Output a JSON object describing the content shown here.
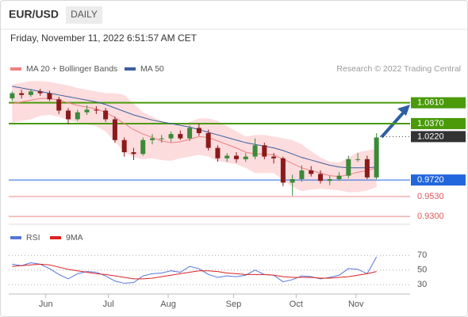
{
  "chart_data": {
    "type": "candlestick",
    "title": "EUR/USD",
    "timeframe": "DAILY",
    "subtitle": "Friday, November 11, 2022 6:51:57 AM CET",
    "source": "Research © 2022 Trading Central",
    "up_color": "#3a8a3a",
    "down_color": "#8b1a1a",
    "open": [
      1.066,
      1.072,
      1.07,
      1.074,
      1.072,
      1.065,
      1.052,
      1.042,
      1.05,
      1.053,
      1.052,
      1.042,
      1.018,
      1.004,
      1.002,
      1.018,
      1.02,
      1.02,
      1.025,
      1.02,
      1.032,
      1.026,
      1.009,
      0.997,
      1.0,
      0.996,
      0.999,
      1.012,
      0.999,
      0.997,
      0.969,
      0.973,
      0.983,
      0.979,
      0.971,
      0.973,
      0.977,
      0.996,
      0.996,
      0.975
    ],
    "high": [
      1.074,
      1.076,
      1.077,
      1.077,
      1.075,
      1.068,
      1.055,
      1.053,
      1.058,
      1.057,
      1.055,
      1.045,
      1.021,
      1.009,
      1.021,
      1.025,
      1.024,
      1.028,
      1.029,
      1.035,
      1.037,
      1.03,
      1.012,
      1.003,
      1.004,
      1.003,
      1.02,
      1.015,
      1.003,
      0.999,
      0.978,
      0.989,
      0.988,
      0.983,
      0.977,
      0.981,
      1.0,
      1.003,
      1.0,
      1.026
    ],
    "low": [
      1.063,
      1.066,
      1.068,
      1.069,
      1.063,
      1.048,
      1.036,
      1.04,
      1.047,
      1.048,
      1.039,
      1.015,
      0.999,
      0.995,
      1.0,
      1.013,
      1.015,
      1.016,
      1.018,
      1.017,
      1.023,
      1.006,
      0.993,
      0.993,
      0.992,
      0.993,
      0.996,
      0.996,
      0.991,
      0.965,
      0.954,
      0.97,
      0.976,
      0.968,
      0.966,
      0.971,
      0.974,
      0.993,
      0.973,
      0.973
    ],
    "close": [
      1.072,
      1.07,
      1.074,
      1.072,
      1.065,
      1.052,
      1.042,
      1.05,
      1.053,
      1.052,
      1.042,
      1.018,
      1.004,
      1.002,
      1.018,
      1.02,
      1.02,
      1.025,
      1.02,
      1.032,
      1.026,
      1.009,
      0.997,
      1.0,
      0.996,
      0.999,
      1.012,
      0.999,
      0.997,
      0.969,
      0.973,
      0.983,
      0.979,
      0.971,
      0.973,
      0.977,
      0.996,
      0.996,
      0.975,
      1.021
    ],
    "series": [
      {
        "name": "MA 20 + Bollinger Bands",
        "color": "#f08080",
        "values": [
          1.06,
          1.062,
          1.064,
          1.066,
          1.066,
          1.064,
          1.061,
          1.058,
          1.056,
          1.054,
          1.05,
          1.044,
          1.037,
          1.03,
          1.025,
          1.021,
          1.017,
          1.015,
          1.016,
          1.019,
          1.022,
          1.021,
          1.017,
          1.013,
          1.009,
          1.004,
          1.002,
          1.002,
          1.001,
          0.996,
          0.991,
          0.986,
          0.983,
          0.98,
          0.977,
          0.976,
          0.978,
          0.981,
          0.983,
          0.986
        ]
      },
      {
        "name": "MA 50",
        "color": "#3a5f9e",
        "values": [
          1.08,
          1.078,
          1.076,
          1.074,
          1.072,
          1.07,
          1.068,
          1.066,
          1.064,
          1.062,
          1.059,
          1.055,
          1.051,
          1.047,
          1.044,
          1.041,
          1.039,
          1.037,
          1.035,
          1.033,
          1.03,
          1.027,
          1.024,
          1.021,
          1.018,
          1.015,
          1.013,
          1.011,
          1.009,
          1.006,
          1.002,
          0.998,
          0.995,
          0.992,
          0.989,
          0.987,
          0.986,
          0.986,
          0.986,
          0.987
        ]
      }
    ],
    "bollinger": {
      "color": "#fcd3d6",
      "upper": [
        1.082,
        1.084,
        1.086,
        1.086,
        1.085,
        1.083,
        1.081,
        1.078,
        1.076,
        1.074,
        1.072,
        1.072,
        1.07,
        1.06,
        1.05,
        1.045,
        1.04,
        1.036,
        1.035,
        1.039,
        1.043,
        1.043,
        1.04,
        1.034,
        1.028,
        1.022,
        1.024,
        1.024,
        1.022,
        1.02,
        1.018,
        1.013,
        1.005,
        0.998,
        0.993,
        0.992,
        0.998,
        1.004,
        1.006,
        1.008
      ],
      "lower": [
        1.038,
        1.04,
        1.042,
        1.046,
        1.047,
        1.045,
        1.041,
        1.038,
        1.036,
        1.034,
        1.028,
        1.016,
        1.004,
        0.998,
        0.996,
        0.997,
        0.995,
        0.994,
        0.997,
        0.999,
        1.001,
        0.999,
        0.994,
        0.992,
        0.99,
        0.986,
        0.98,
        0.98,
        0.98,
        0.972,
        0.964,
        0.959,
        0.961,
        0.962,
        0.961,
        0.96,
        0.958,
        0.958,
        0.96,
        0.964
      ]
    },
    "ylim": [
      0.921,
      1.089
    ],
    "xlim": [
      -0.2,
      39.2
    ],
    "xticks": [
      {
        "value": 3.6,
        "label": "Jun"
      },
      {
        "value": 10.3,
        "label": "Jul"
      },
      {
        "value": 16.7,
        "label": "Aug"
      },
      {
        "value": 23.7,
        "label": "Sep"
      },
      {
        "value": 30.4,
        "label": "Oct"
      },
      {
        "value": 36.8,
        "label": "Nov"
      }
    ],
    "levels": [
      {
        "value": 1.061,
        "label": "1.0610",
        "color": "#4a9a0a",
        "label_fill": true,
        "line": "solid"
      },
      {
        "value": 1.037,
        "label": "1.0370",
        "color": "#4a9a0a",
        "label_fill": true,
        "line": "solid"
      },
      {
        "value": 1.022,
        "label": "1.0220",
        "color": "#333333",
        "label_fill": true,
        "line": "dotted"
      },
      {
        "value": 0.972,
        "label": "0.9720",
        "color": "#2266dd",
        "label_fill": true,
        "line": "solid"
      },
      {
        "value": 0.953,
        "label": "0.9530",
        "color": "#e05555",
        "label_fill": false,
        "line": "solid"
      },
      {
        "value": 0.93,
        "label": "0.9300",
        "color": "#e05555",
        "label_fill": false,
        "line": "solid"
      }
    ],
    "rsi": {
      "series": [
        {
          "name": "RSI",
          "color": "#5577dd",
          "values": [
            58,
            56,
            60,
            58,
            52,
            44,
            38,
            45,
            48,
            47,
            42,
            35,
            32,
            33,
            42,
            45,
            46,
            49,
            47,
            55,
            52,
            44,
            40,
            42,
            41,
            43,
            50,
            44,
            43,
            34,
            37,
            42,
            41,
            38,
            40,
            43,
            52,
            51,
            45,
            68
          ]
        },
        {
          "name": "9MA",
          "color": "#dd2222",
          "values": [
            55,
            56,
            57,
            58,
            57,
            54,
            51,
            49,
            47,
            45,
            44,
            42,
            40,
            38,
            38,
            39,
            41,
            43,
            45,
            47,
            49,
            49,
            48,
            46,
            45,
            44,
            44,
            44,
            43,
            41,
            40,
            40,
            40,
            39,
            39,
            40,
            41,
            43,
            45,
            48
          ]
        }
      ],
      "ylim": [
        19.5,
        80
      ],
      "yticks": [
        30,
        50,
        70
      ]
    }
  }
}
